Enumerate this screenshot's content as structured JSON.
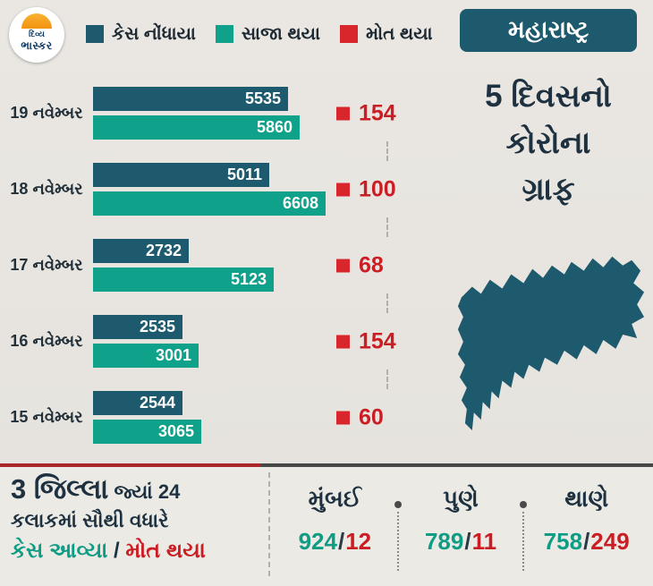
{
  "logo": {
    "line1": "દિવ્ય",
    "line2": "ભાસ્કર"
  },
  "legend": {
    "items": [
      {
        "label": "કેસ નોંધાયા",
        "color": "#1d5a6d"
      },
      {
        "label": "સાજા થયા",
        "color": "#0fa189"
      },
      {
        "label": "મોત થયા",
        "color": "#d8262c"
      }
    ]
  },
  "header": {
    "state_badge": "મહારાષ્ટ્ર",
    "title_lines": [
      "5 દિવસનો",
      "કોરોના",
      "ગ્રાફ"
    ]
  },
  "chart_data": {
    "type": "bar",
    "orientation": "horizontal",
    "title": "મહારાષ્ટ્ર - 5 દિવસનો કોરોના ગ્રાફ",
    "categories": [
      "19 નવેમ્બર",
      "18 નવેમ્બર",
      "17 નવેમ્બર",
      "16 નવેમ્બર",
      "15 નવેમ્બર"
    ],
    "series": [
      {
        "name": "કેસ નોંધાયા",
        "color": "#1d5a6d",
        "values": [
          5535,
          5011,
          2732,
          2535,
          2544
        ]
      },
      {
        "name": "સાજા થયા",
        "color": "#0fa189",
        "values": [
          5860,
          6608,
          5123,
          3001,
          3065
        ]
      },
      {
        "name": "મોત થયા",
        "color": "#d8262c",
        "values": [
          154,
          100,
          68,
          154,
          60
        ]
      }
    ],
    "xmax": 6608,
    "grid": false,
    "legend_position": "top",
    "value_labels": "inside-bars"
  },
  "footer": {
    "heading_big": "3 જિલ્લા",
    "heading_rest": " જ્યાં 24",
    "line2": "કલાકમાં સૌથી વધારે",
    "line3_green": "કેસ આવ્યા",
    "line3_sep": " / ",
    "line3_red": "મોત થયા",
    "cities": [
      {
        "name": "મુંબઈ",
        "cases": "924",
        "slash": "/",
        "deaths": "12"
      },
      {
        "name": "પુણે",
        "cases": "789",
        "slash": "/",
        "deaths": "11"
      },
      {
        "name": "થાણે",
        "cases": "758",
        "slash": "/",
        "deaths": "249"
      }
    ]
  },
  "colors": {
    "cases": "#1d5a6d",
    "recovered": "#0fa189",
    "deaths": "#d8262c",
    "background": "#e8e5e0",
    "dark_text": "#1d3140"
  }
}
